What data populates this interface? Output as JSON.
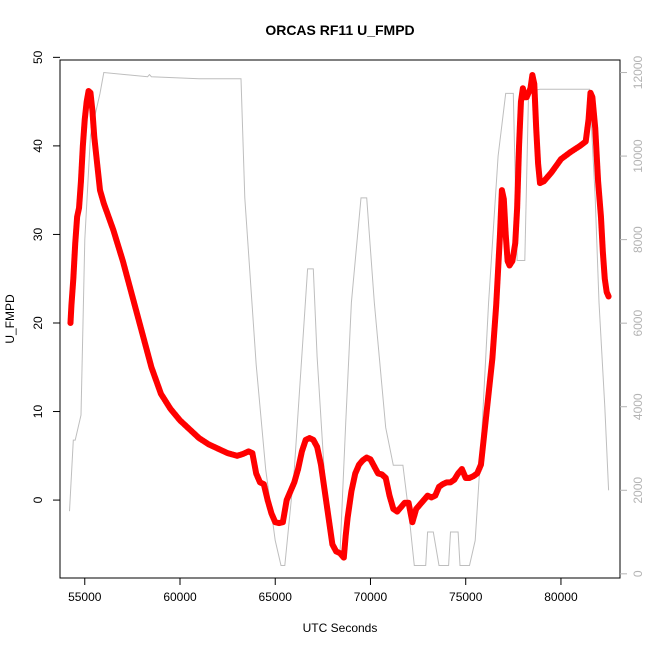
{
  "chart_data": {
    "type": "scatter",
    "title": "ORCAS RF11 U_FMPD",
    "xlabel": "UTC Seconds",
    "ylabel": "U_FMPD",
    "xlim": [
      53700,
      83100
    ],
    "ylim": [
      -8.8,
      49.7
    ],
    "y2lim": [
      -100,
      12300
    ],
    "x_ticks": [
      55000,
      60000,
      65000,
      70000,
      75000,
      80000
    ],
    "x_tick_labels": [
      "55000",
      "60000",
      "65000",
      "70000",
      "75000",
      "80000"
    ],
    "y_ticks": [
      0,
      10,
      20,
      30,
      40,
      50
    ],
    "y_tick_labels": [
      "0",
      "10",
      "20",
      "30",
      "40",
      "50"
    ],
    "y2_ticks": [
      0,
      2000,
      4000,
      6000,
      8000,
      10000,
      12000
    ],
    "y2_tick_labels": [
      "0",
      "2000",
      "4000",
      "6000",
      "8000",
      "10000",
      "12000"
    ],
    "colors": {
      "series": "#ff0000",
      "secondary": "#bebebe",
      "axis": "#000000",
      "right_axis": "#b3b3b3"
    },
    "series": [
      {
        "role": "primary",
        "style": "circles",
        "points": [
          [
            54250,
            20
          ],
          [
            54300,
            22
          ],
          [
            54400,
            25
          ],
          [
            54500,
            29
          ],
          [
            54600,
            32
          ],
          [
            54700,
            33
          ],
          [
            54800,
            36
          ],
          [
            54900,
            40
          ],
          [
            55000,
            43
          ],
          [
            55100,
            45
          ],
          [
            55200,
            46.2
          ],
          [
            55300,
            46
          ],
          [
            55400,
            44
          ],
          [
            55500,
            41
          ],
          [
            55650,
            38
          ],
          [
            55800,
            35
          ],
          [
            56000,
            33.5
          ],
          [
            56500,
            30.5
          ],
          [
            57000,
            27
          ],
          [
            57500,
            23
          ],
          [
            58000,
            19
          ],
          [
            58500,
            15
          ],
          [
            59000,
            12
          ],
          [
            59500,
            10.3
          ],
          [
            60000,
            9
          ],
          [
            60500,
            8
          ],
          [
            61000,
            7
          ],
          [
            61500,
            6.3
          ],
          [
            62000,
            5.8
          ],
          [
            62500,
            5.3
          ],
          [
            63000,
            5
          ],
          [
            63300,
            5.2
          ],
          [
            63600,
            5.5
          ],
          [
            63800,
            5.3
          ],
          [
            64000,
            3
          ],
          [
            64200,
            2
          ],
          [
            64400,
            1.8
          ],
          [
            64600,
            0
          ],
          [
            64800,
            -1.5
          ],
          [
            65000,
            -2.5
          ],
          [
            65200,
            -2.6
          ],
          [
            65400,
            -2.5
          ],
          [
            65600,
            0
          ],
          [
            65800,
            1
          ],
          [
            66000,
            2
          ],
          [
            66200,
            3.5
          ],
          [
            66400,
            5.5
          ],
          [
            66600,
            6.8
          ],
          [
            66800,
            7
          ],
          [
            67000,
            6.8
          ],
          [
            67200,
            6
          ],
          [
            67400,
            4
          ],
          [
            67600,
            1
          ],
          [
            67800,
            -2
          ],
          [
            68000,
            -5
          ],
          [
            68200,
            -5.8
          ],
          [
            68400,
            -6
          ],
          [
            68600,
            -6.5
          ],
          [
            68700,
            -4
          ],
          [
            68800,
            -2
          ],
          [
            69000,
            1
          ],
          [
            69200,
            3
          ],
          [
            69400,
            4
          ],
          [
            69600,
            4.5
          ],
          [
            69800,
            4.8
          ],
          [
            70000,
            4.6
          ],
          [
            70200,
            3.8
          ],
          [
            70400,
            3
          ],
          [
            70600,
            2.9
          ],
          [
            70800,
            2.5
          ],
          [
            71000,
            0.5
          ],
          [
            71200,
            -1
          ],
          [
            71400,
            -1.3
          ],
          [
            71600,
            -0.8
          ],
          [
            71800,
            -0.3
          ],
          [
            72000,
            -0.3
          ],
          [
            72200,
            -2.5
          ],
          [
            72400,
            -1
          ],
          [
            72600,
            -0.5
          ],
          [
            72800,
            0
          ],
          [
            73000,
            0.5
          ],
          [
            73200,
            0.3
          ],
          [
            73400,
            0.5
          ],
          [
            73600,
            1.5
          ],
          [
            73800,
            1.8
          ],
          [
            74000,
            2
          ],
          [
            74200,
            2
          ],
          [
            74400,
            2.3
          ],
          [
            74600,
            3
          ],
          [
            74800,
            3.5
          ],
          [
            75000,
            2.5
          ],
          [
            75200,
            2.5
          ],
          [
            75400,
            2.7
          ],
          [
            75600,
            3
          ],
          [
            75800,
            4
          ],
          [
            76000,
            8
          ],
          [
            76200,
            12
          ],
          [
            76400,
            16
          ],
          [
            76600,
            22
          ],
          [
            76800,
            30
          ],
          [
            76900,
            35
          ],
          [
            77000,
            34
          ],
          [
            77100,
            30
          ],
          [
            77200,
            27
          ],
          [
            77300,
            26.5
          ],
          [
            77450,
            27
          ],
          [
            77600,
            29
          ],
          [
            77700,
            33
          ],
          [
            77800,
            40
          ],
          [
            77900,
            45
          ],
          [
            78000,
            46.5
          ],
          [
            78100,
            45.5
          ],
          [
            78200,
            45.5
          ],
          [
            78300,
            46
          ],
          [
            78400,
            46.5
          ],
          [
            78500,
            48
          ],
          [
            78600,
            47
          ],
          [
            78700,
            42
          ],
          [
            78800,
            38
          ],
          [
            78900,
            35.8
          ],
          [
            79100,
            36
          ],
          [
            79500,
            37
          ],
          [
            80000,
            38.5
          ],
          [
            80500,
            39.3
          ],
          [
            81000,
            40
          ],
          [
            81300,
            40.5
          ],
          [
            81450,
            43
          ],
          [
            81550,
            46
          ],
          [
            81650,
            45.5
          ],
          [
            81800,
            42
          ],
          [
            81950,
            36
          ],
          [
            82100,
            32
          ],
          [
            82200,
            28
          ],
          [
            82300,
            25
          ],
          [
            82400,
            23.5
          ],
          [
            82500,
            23
          ]
        ]
      },
      {
        "role": "secondary",
        "style": "line",
        "axis": "right",
        "points": [
          [
            54200,
            1500
          ],
          [
            54400,
            3200
          ],
          [
            54500,
            3200
          ],
          [
            54800,
            3800
          ],
          [
            55000,
            8000
          ],
          [
            55300,
            10500
          ],
          [
            55800,
            11500
          ],
          [
            56000,
            12000
          ],
          [
            58300,
            11900
          ],
          [
            58400,
            11950
          ],
          [
            58500,
            11900
          ],
          [
            61000,
            11850
          ],
          [
            63200,
            11850
          ],
          [
            63400,
            9000
          ],
          [
            64000,
            5000
          ],
          [
            64500,
            2500
          ],
          [
            65000,
            800
          ],
          [
            65300,
            200
          ],
          [
            65500,
            200
          ],
          [
            66000,
            2500
          ],
          [
            66700,
            7300
          ],
          [
            67000,
            7300
          ],
          [
            67200,
            5200
          ],
          [
            67700,
            1500
          ],
          [
            68100,
            500
          ],
          [
            68400,
            500
          ],
          [
            68700,
            3600
          ],
          [
            69000,
            6500
          ],
          [
            69500,
            9000
          ],
          [
            69800,
            9000
          ],
          [
            70200,
            6500
          ],
          [
            70800,
            3500
          ],
          [
            71200,
            2600
          ],
          [
            71700,
            2600
          ],
          [
            72000,
            1500
          ],
          [
            72300,
            200
          ],
          [
            72900,
            200
          ],
          [
            73000,
            1000
          ],
          [
            73300,
            1000
          ],
          [
            73600,
            200
          ],
          [
            74100,
            200
          ],
          [
            74200,
            1000
          ],
          [
            74600,
            1000
          ],
          [
            74700,
            200
          ],
          [
            75200,
            200
          ],
          [
            75500,
            800
          ],
          [
            75800,
            3000
          ],
          [
            76200,
            6500
          ],
          [
            76700,
            10000
          ],
          [
            77100,
            11500
          ],
          [
            77500,
            11500
          ],
          [
            77700,
            7500
          ],
          [
            78100,
            7500
          ],
          [
            78300,
            11550
          ],
          [
            78900,
            11600
          ],
          [
            81500,
            11600
          ],
          [
            81800,
            9000
          ],
          [
            82000,
            6500
          ],
          [
            82300,
            4000
          ],
          [
            82500,
            2000
          ]
        ]
      }
    ]
  }
}
